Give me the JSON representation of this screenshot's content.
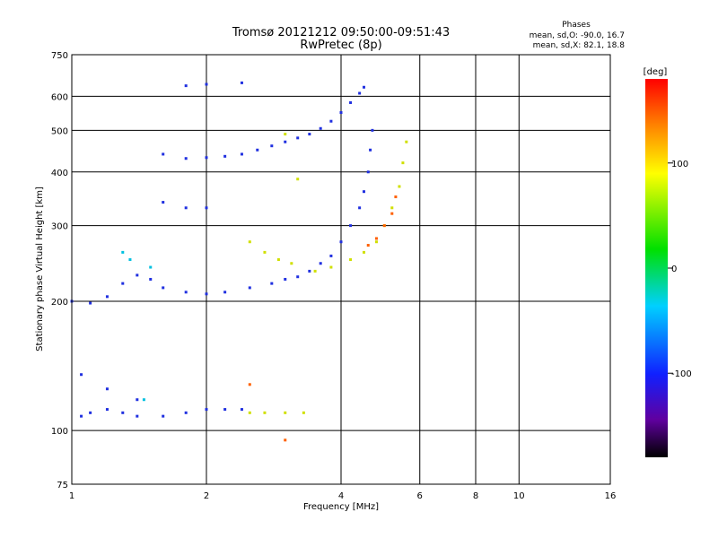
{
  "header": {
    "title_line1": "Tromsø 20121212 09:50:00-09:51:43",
    "title_line2": "RwPretec (8p)",
    "phase_title": "Phases",
    "phase_o": "mean, sd,O: -90.0, 16.7",
    "phase_x": "mean, sd,X: 82.1, 18.8"
  },
  "chart_data": {
    "type": "scatter",
    "xlabel": "Frequency [MHz]",
    "ylabel": "Stationary phase Virtual Height [km]",
    "x_scale": "log",
    "y_scale": "log",
    "xlim": [
      1,
      16
    ],
    "ylim": [
      75,
      750
    ],
    "x_ticks": [
      1,
      2,
      4,
      6,
      8,
      10,
      16
    ],
    "x_tick_labels": [
      "1",
      "2",
      "4",
      "6",
      "8",
      "10",
      "16"
    ],
    "y_ticks": [
      75,
      100,
      200,
      300,
      400,
      500,
      600,
      750
    ],
    "y_tick_labels": [
      "75",
      "100",
      "200",
      "300",
      "400",
      "500",
      "600",
      "750"
    ],
    "grid": true,
    "colorbar": {
      "label": "[deg]",
      "range": [
        -180,
        180
      ],
      "ticks": [
        100,
        0,
        -100
      ],
      "tick_labels": [
        "100",
        "0",
        "-100"
      ]
    },
    "series": [
      {
        "name": "",
        "color": "#2030e0",
        "phase": -100,
        "points": [
          [
            1.05,
            108
          ],
          [
            1.1,
            110
          ],
          [
            1.2,
            112
          ],
          [
            1.3,
            110
          ],
          [
            1.4,
            108
          ],
          [
            1.6,
            108
          ],
          [
            1.8,
            110
          ],
          [
            2.0,
            112
          ],
          [
            2.2,
            112
          ],
          [
            2.4,
            112
          ],
          [
            1.0,
            200
          ],
          [
            1.1,
            198
          ],
          [
            1.2,
            205
          ],
          [
            1.3,
            220
          ],
          [
            1.4,
            230
          ],
          [
            1.5,
            225
          ],
          [
            1.6,
            215
          ],
          [
            1.8,
            210
          ],
          [
            2.0,
            208
          ],
          [
            2.2,
            210
          ],
          [
            2.5,
            215
          ],
          [
            2.8,
            220
          ],
          [
            3.0,
            225
          ],
          [
            3.2,
            228
          ],
          [
            3.4,
            235
          ],
          [
            3.6,
            245
          ],
          [
            3.8,
            255
          ],
          [
            4.0,
            275
          ],
          [
            4.2,
            300
          ],
          [
            4.4,
            330
          ],
          [
            4.5,
            360
          ],
          [
            4.6,
            400
          ],
          [
            4.65,
            450
          ],
          [
            4.7,
            500
          ],
          [
            1.6,
            440
          ],
          [
            1.8,
            430
          ],
          [
            2.0,
            432
          ],
          [
            2.2,
            435
          ],
          [
            2.4,
            440
          ],
          [
            2.6,
            450
          ],
          [
            2.8,
            460
          ],
          [
            3.0,
            470
          ],
          [
            3.2,
            480
          ],
          [
            3.4,
            490
          ],
          [
            3.6,
            505
          ],
          [
            3.8,
            525
          ],
          [
            4.0,
            550
          ],
          [
            4.2,
            580
          ],
          [
            4.4,
            610
          ],
          [
            4.5,
            630
          ],
          [
            1.6,
            340
          ],
          [
            1.8,
            330
          ],
          [
            2.0,
            330
          ],
          [
            1.8,
            635
          ],
          [
            2.0,
            640
          ],
          [
            2.4,
            645
          ],
          [
            1.05,
            135
          ],
          [
            1.2,
            125
          ],
          [
            1.4,
            118
          ]
        ]
      },
      {
        "name": "",
        "color": "#00c0e0",
        "phase": -30,
        "points": [
          [
            1.3,
            260
          ],
          [
            1.35,
            250
          ],
          [
            1.5,
            240
          ],
          [
            1.45,
            118
          ]
        ]
      },
      {
        "name": "",
        "color": "#d0e000",
        "phase": 100,
        "points": [
          [
            2.5,
            110
          ],
          [
            2.7,
            110
          ],
          [
            3.0,
            110
          ],
          [
            3.3,
            110
          ],
          [
            2.5,
            275
          ],
          [
            2.7,
            260
          ],
          [
            2.9,
            250
          ],
          [
            3.1,
            245
          ],
          [
            3.5,
            235
          ],
          [
            3.8,
            240
          ],
          [
            4.2,
            250
          ],
          [
            4.5,
            260
          ],
          [
            4.8,
            275
          ],
          [
            5.0,
            300
          ],
          [
            5.2,
            330
          ],
          [
            5.4,
            370
          ],
          [
            5.5,
            420
          ],
          [
            5.6,
            470
          ],
          [
            3.0,
            490
          ],
          [
            3.2,
            385
          ]
        ]
      },
      {
        "name": "",
        "color": "#ff6000",
        "phase": 150,
        "points": [
          [
            4.6,
            270
          ],
          [
            4.8,
            280
          ],
          [
            5.0,
            300
          ],
          [
            5.2,
            320
          ],
          [
            5.3,
            350
          ],
          [
            2.5,
            128
          ],
          [
            3.0,
            95
          ]
        ]
      }
    ]
  }
}
